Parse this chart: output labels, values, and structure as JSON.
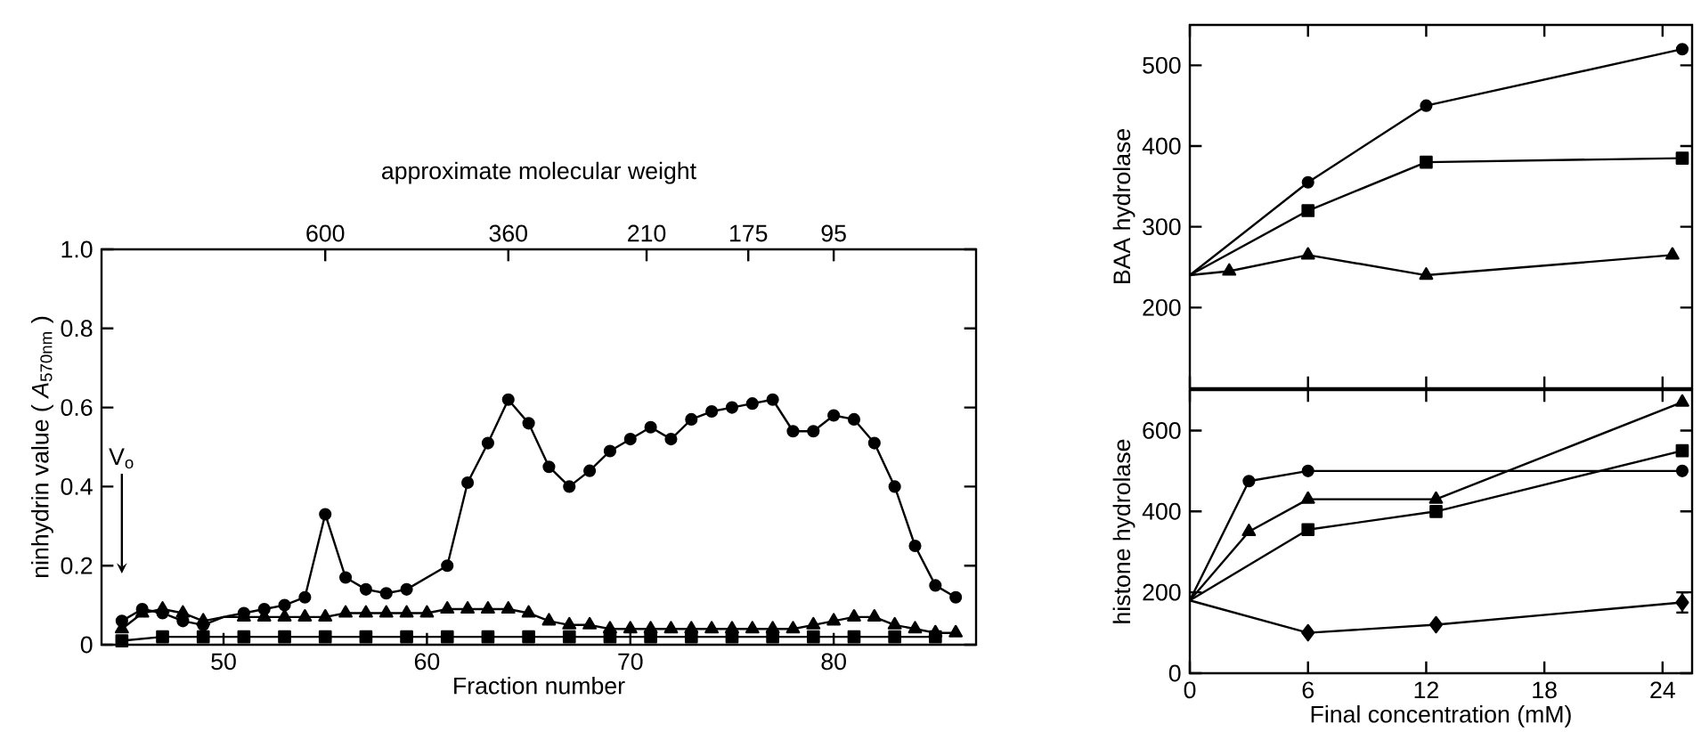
{
  "chart_data": [
    {
      "type": "line",
      "xlabel": "Fraction number",
      "ylabel": "ninhydrin value ( *A*$_{570nm}$ )",
      "xlim": [
        44,
        87
      ],
      "ylim": [
        0,
        1
      ],
      "xticks": [
        50,
        60,
        70,
        80
      ],
      "yticks": [
        0,
        0.2,
        0.4,
        0.6,
        0.8,
        {
          "value": 1,
          "label": "1.0"
        }
      ],
      "line_style": "solid",
      "annotations": [
        "approximate molecular weight",
        "600",
        "360",
        "210",
        "175",
        "95",
        "V$_{o}$"
      ],
      "series": [
        {
          "color": "#000000",
          "marker": "circle",
          "x": [
            45,
            46,
            47,
            48,
            49,
            50,
            51,
            52,
            53,
            54,
            55,
            56,
            57,
            58,
            59,
            61,
            62,
            63,
            64,
            65,
            66,
            67,
            68,
            69,
            70,
            71,
            72,
            73,
            74,
            75,
            76,
            77,
            78,
            79,
            80,
            81,
            82,
            83,
            84,
            85,
            86
          ],
          "values": [
            0.06,
            0.09,
            0.08,
            0.06,
            0.05,
            0.07,
            0.08,
            0.09,
            0.1,
            0.12,
            0.33,
            0.17,
            0.14,
            0.13,
            0.14,
            0.2,
            0.41,
            0.51,
            0.62,
            0.56,
            0.45,
            0.4,
            0.44,
            0.49,
            0.52,
            0.55,
            0.52,
            0.57,
            0.59,
            0.6,
            0.61,
            0.62,
            0.54,
            0.54,
            0.58,
            0.57,
            0.51,
            0.4,
            0.25,
            0.15,
            0.12
          ]
        },
        {
          "color": "#000000",
          "marker": "triangle",
          "x": [
            45,
            46,
            47,
            48,
            49,
            50,
            51,
            52,
            53,
            54,
            55,
            56,
            57,
            58,
            59,
            60,
            61,
            62,
            63,
            64,
            65,
            66,
            67,
            68,
            69,
            70,
            71,
            72,
            73,
            74,
            75,
            76,
            77,
            78,
            79,
            80,
            81,
            82,
            83,
            84,
            85,
            86
          ],
          "values": [
            0.04,
            0.08,
            0.09,
            0.08,
            0.06,
            0.07,
            0.07,
            0.07,
            0.07,
            0.07,
            0.07,
            0.08,
            0.08,
            0.08,
            0.08,
            0.08,
            0.09,
            0.09,
            0.09,
            0.09,
            0.08,
            0.06,
            0.05,
            0.05,
            0.04,
            0.04,
            0.04,
            0.04,
            0.04,
            0.04,
            0.04,
            0.04,
            0.04,
            0.04,
            0.05,
            0.06,
            0.07,
            0.07,
            0.05,
            0.04,
            0.03,
            0.03
          ]
        },
        {
          "color": "#000000",
          "marker": "square",
          "x": [
            45,
            47,
            49,
            51,
            53,
            55,
            57,
            59,
            61,
            63,
            65,
            67,
            69,
            71,
            73,
            75,
            77,
            79,
            81,
            83,
            85
          ],
          "values": [
            0.01,
            0.02,
            0.02,
            0.02,
            0.02,
            0.02,
            0.02,
            0.02,
            0.02,
            0.02,
            0.02,
            0.02,
            0.02,
            0.02,
            0.02,
            0.02,
            0.02,
            0.02,
            0.02,
            0.02,
            0.02
          ]
        }
      ]
    },
    {
      "type": "line",
      "ylabel": "BAA hydrolase",
      "xlim": [
        0,
        25.5
      ],
      "ylim": [
        100,
        550
      ],
      "xticks": [
        {
          "value": 0,
          "label": null
        },
        {
          "value": 6,
          "label": null
        },
        {
          "value": 12,
          "label": null
        },
        {
          "value": 18,
          "label": null
        },
        {
          "value": 24,
          "label": null
        }
      ],
      "yticks": [
        200,
        300,
        400,
        500
      ],
      "tick_labels": "y",
      "line_style": "solid",
      "series": [
        {
          "color": "#000000",
          "marker": "circle",
          "x": [
            0,
            6,
            12,
            25
          ],
          "values": [
            240,
            355,
            450,
            520
          ]
        },
        {
          "color": "#000000",
          "marker": "square",
          "x": [
            0,
            6,
            12,
            25
          ],
          "values": [
            240,
            320,
            380,
            385
          ]
        },
        {
          "color": "#000000",
          "marker": "triangle",
          "x": [
            0,
            2,
            6,
            12,
            24.5
          ],
          "values": [
            240,
            245,
            265,
            240,
            265
          ]
        }
      ]
    },
    {
      "type": "line",
      "xlabel": "Final concentration (mM)",
      "ylabel": "histone hydrolase",
      "xlim": [
        0,
        25.5
      ],
      "ylim": [
        0,
        700
      ],
      "xticks": [
        0,
        6,
        12,
        18,
        24
      ],
      "yticks": [
        0,
        200,
        400,
        600
      ],
      "line_style": "solid",
      "series": [
        {
          "color": "#000000",
          "marker": "circle",
          "x": [
            0,
            3,
            6,
            25
          ],
          "values": [
            180,
            475,
            500,
            500
          ]
        },
        {
          "color": "#000000",
          "marker": "triangle",
          "x": [
            0,
            3,
            6,
            12.5,
            25
          ],
          "values": [
            180,
            350,
            430,
            430,
            670
          ]
        },
        {
          "color": "#000000",
          "marker": "square",
          "x": [
            0,
            6,
            12.5,
            25
          ],
          "values": [
            180,
            355,
            400,
            550
          ]
        },
        {
          "color": "#000000",
          "marker": "diamond",
          "x": [
            0,
            6,
            12.5,
            25
          ],
          "values": [
            180,
            100,
            120,
            175
          ],
          "errors": [
            null,
            null,
            null,
            25
          ]
        }
      ]
    }
  ]
}
